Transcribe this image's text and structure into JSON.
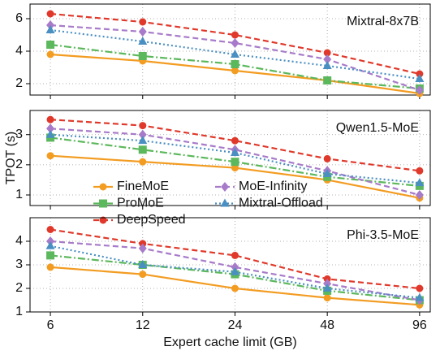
{
  "chart_data": [
    {
      "type": "line",
      "title": "Mixtral-8x7B",
      "xlog": true,
      "xlim": [
        5.15,
        104
      ],
      "xticks": [
        6,
        12,
        24,
        48,
        96
      ],
      "show_xticklabels": false,
      "ylim": [
        1.3,
        6.9
      ],
      "yticks": [
        2,
        4,
        6
      ],
      "grid": true,
      "x": [
        6,
        12,
        24,
        48,
        96
      ],
      "series": [
        {
          "color": "#f39c22",
          "linestyle": "solid",
          "marker": "circle",
          "values": [
            3.8,
            3.4,
            2.8,
            2.2,
            1.4
          ]
        },
        {
          "color": "#5cb85c",
          "linestyle": "dashdot",
          "marker": "square",
          "values": [
            4.4,
            3.7,
            3.2,
            2.2,
            1.7
          ]
        },
        {
          "color": "#e0392b",
          "linestyle": "dashed",
          "marker": "circle",
          "values": [
            6.3,
            5.8,
            5.0,
            3.9,
            2.6
          ]
        },
        {
          "color": "#a77bc9",
          "linestyle": "dashed",
          "marker": "diamond",
          "values": [
            5.6,
            5.2,
            4.5,
            3.5,
            1.6
          ]
        },
        {
          "color": "#4a8fc2",
          "linestyle": "dotted",
          "marker": "triangle",
          "values": [
            5.3,
            4.6,
            3.8,
            3.1,
            2.3
          ]
        }
      ]
    },
    {
      "type": "line",
      "title": "Qwen1.5-MoE",
      "ylabel": "TPOT (s)",
      "xlog": true,
      "xlim": [
        5.15,
        104
      ],
      "xticks": [
        6,
        12,
        24,
        48,
        96
      ],
      "show_xticklabels": false,
      "ylim": [
        0.65,
        3.8
      ],
      "yticks": [
        1,
        2,
        3
      ],
      "grid": true,
      "legend": "lower-left",
      "legend_columns": 2,
      "x": [
        6,
        12,
        24,
        48,
        96
      ],
      "series": [
        {
          "name": "FineMoE",
          "color": "#f39c22",
          "linestyle": "solid",
          "marker": "circle",
          "values": [
            2.3,
            2.1,
            1.9,
            1.5,
            0.9
          ]
        },
        {
          "name": "ProMoE",
          "color": "#5cb85c",
          "linestyle": "dashdot",
          "marker": "square",
          "values": [
            2.9,
            2.5,
            2.1,
            1.6,
            1.3
          ]
        },
        {
          "name": "DeepSpeed",
          "color": "#e0392b",
          "linestyle": "dashed",
          "marker": "circle",
          "values": [
            3.5,
            3.3,
            2.8,
            2.2,
            1.8
          ]
        },
        {
          "name": "MoE-Infinity",
          "color": "#a77bc9",
          "linestyle": "dashed",
          "marker": "diamond",
          "values": [
            3.2,
            3.0,
            2.5,
            1.8,
            1.0
          ]
        },
        {
          "name": "Mixtral-Offload",
          "color": "#4a8fc2",
          "linestyle": "dotted",
          "marker": "triangle",
          "values": [
            3.0,
            2.8,
            2.4,
            1.7,
            1.4
          ]
        }
      ]
    },
    {
      "type": "line",
      "title": "Phi-3.5-MoE",
      "xlabel": "Expert cache limit (GB)",
      "xlog": true,
      "xlim": [
        5.15,
        104
      ],
      "xticks": [
        6,
        12,
        24,
        48,
        96
      ],
      "show_xticklabels": true,
      "ylim": [
        1.0,
        5.0
      ],
      "yticks": [
        1,
        2,
        3,
        4
      ],
      "grid": true,
      "x": [
        6,
        12,
        24,
        48,
        96
      ],
      "series": [
        {
          "color": "#f39c22",
          "linestyle": "solid",
          "marker": "circle",
          "values": [
            2.9,
            2.6,
            2.0,
            1.6,
            1.3
          ]
        },
        {
          "color": "#5cb85c",
          "linestyle": "dashdot",
          "marker": "square",
          "values": [
            3.4,
            3.0,
            2.6,
            1.9,
            1.5
          ]
        },
        {
          "color": "#e0392b",
          "linestyle": "dashed",
          "marker": "circle",
          "values": [
            4.5,
            3.9,
            3.4,
            2.4,
            2.0
          ]
        },
        {
          "color": "#a77bc9",
          "linestyle": "dashed",
          "marker": "diamond",
          "values": [
            4.0,
            3.7,
            2.9,
            2.2,
            1.5
          ]
        },
        {
          "color": "#4a8fc2",
          "linestyle": "dotted",
          "marker": "triangle",
          "values": [
            3.8,
            3.0,
            2.7,
            2.0,
            1.6
          ]
        }
      ]
    }
  ]
}
